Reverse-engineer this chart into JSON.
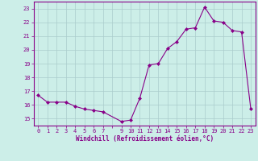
{
  "x_values": [
    0,
    1,
    2,
    3,
    4,
    5,
    6,
    7,
    9,
    10,
    11,
    12,
    13,
    14,
    15,
    16,
    17,
    18,
    19,
    20,
    21,
    22,
    23
  ],
  "y_values": [
    16.7,
    16.2,
    16.2,
    16.2,
    15.9,
    15.7,
    15.6,
    15.5,
    14.8,
    14.9,
    16.5,
    18.9,
    19.0,
    20.1,
    20.6,
    21.5,
    21.6,
    23.1,
    22.1,
    22.0,
    21.4,
    21.3,
    15.7
  ],
  "line_color": "#880088",
  "marker": "D",
  "marker_size": 2.0,
  "bg_color": "#cceee8",
  "grid_color": "#aacccc",
  "ylabel_ticks": [
    15,
    16,
    17,
    18,
    19,
    20,
    21,
    22,
    23
  ],
  "xlim": [
    -0.5,
    23.5
  ],
  "ylim": [
    14.5,
    23.5
  ],
  "xlabel": "Windchill (Refroidissement éolien,°C)",
  "tick_color": "#880088",
  "spine_color": "#880088",
  "label_fontsize": 5.0,
  "xlabel_fontsize": 5.5
}
